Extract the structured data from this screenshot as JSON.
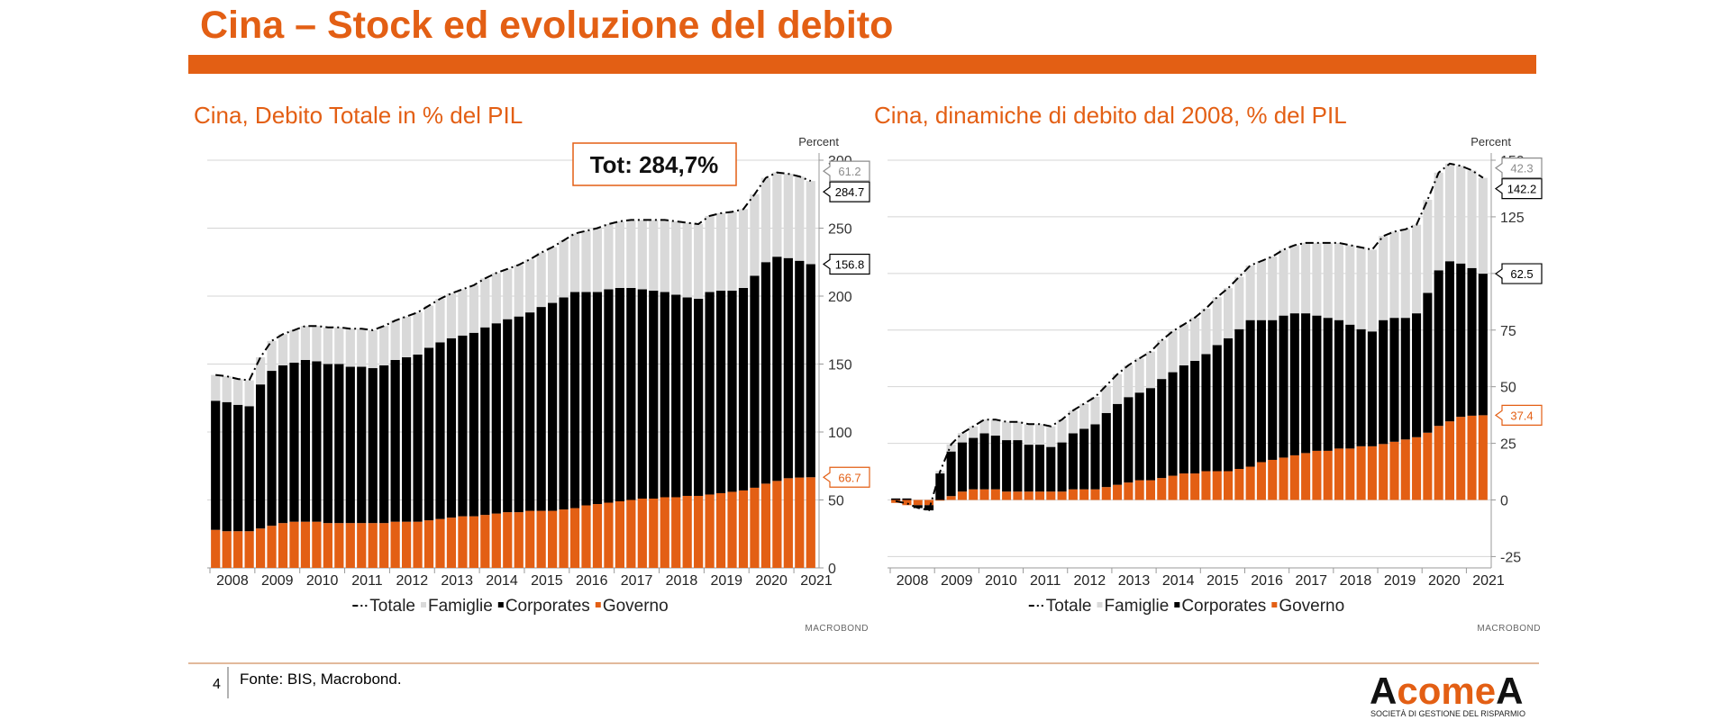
{
  "slide": {
    "title": "Cina – Stock ed evoluzione del debito",
    "page_number": "4",
    "source": "Fonte: BIS, Macrobond.",
    "logo": "AcomeA",
    "logo_tagline": "SOCIETÀ DI GESTIONE DEL RISPARMIO"
  },
  "chart_data": [
    {
      "type": "bar",
      "stacked": true,
      "title": "Cina, Debito Totale in % del PIL",
      "y_label": "Percent",
      "annotation": "Tot: 284,7%",
      "credit": "MACROBOND",
      "grid": true,
      "categories": [
        "2008",
        null,
        null,
        null,
        "2009",
        null,
        null,
        null,
        "2010",
        null,
        null,
        null,
        "2011",
        null,
        null,
        null,
        "2012",
        null,
        null,
        null,
        "2013",
        null,
        null,
        null,
        "2014",
        null,
        null,
        null,
        "2015",
        null,
        null,
        null,
        "2016",
        null,
        null,
        null,
        "2017",
        null,
        null,
        null,
        "2018",
        null,
        null,
        null,
        "2019",
        null,
        null,
        null,
        "2020",
        null,
        null,
        null,
        "2021",
        null
      ],
      "ylim": [
        0,
        300
      ],
      "yticks": [
        0,
        50,
        100,
        150,
        200,
        250,
        300
      ],
      "series": [
        {
          "name": "Totale",
          "type": "line",
          "color": "#000000",
          "values": [
            142,
            141,
            139,
            138,
            155,
            167,
            172,
            175,
            178,
            178,
            177,
            177,
            176,
            176,
            175,
            178,
            182,
            185,
            188,
            193,
            198,
            202,
            205,
            208,
            213,
            217,
            220,
            223,
            227,
            232,
            236,
            241,
            246,
            248,
            250,
            253,
            255,
            256,
            256,
            256,
            256,
            255,
            254,
            253,
            259,
            261,
            262,
            264,
            275,
            287,
            291,
            290,
            288,
            284.7
          ]
        },
        {
          "name": "Famiglie",
          "color": "#d9d9d9",
          "values": [
            19,
            19,
            19,
            19,
            20,
            22,
            23,
            24,
            25,
            26,
            27,
            27,
            28,
            28,
            28,
            29,
            29,
            30,
            31,
            31,
            32,
            33,
            34,
            35,
            36,
            37,
            37,
            38,
            39,
            40,
            41,
            42,
            43,
            45,
            47,
            48,
            49,
            50,
            51,
            52,
            53,
            54,
            55,
            55,
            56,
            57,
            58,
            58,
            60,
            62,
            62,
            62,
            62,
            61.2
          ]
        },
        {
          "name": "Corporates",
          "color": "#000000",
          "values": [
            95,
            95,
            93,
            92,
            106,
            114,
            116,
            117,
            119,
            118,
            117,
            117,
            115,
            115,
            114,
            116,
            119,
            121,
            123,
            127,
            130,
            132,
            133,
            135,
            138,
            140,
            142,
            144,
            146,
            150,
            153,
            156,
            159,
            157,
            156,
            157,
            157,
            156,
            154,
            153,
            151,
            149,
            146,
            145,
            149,
            149,
            148,
            149,
            156,
            163,
            165,
            162,
            159.5,
            156.8
          ]
        },
        {
          "name": "Governo",
          "color": "#e35f14",
          "values": [
            28,
            27,
            27,
            27,
            29,
            31,
            33,
            34,
            34,
            34,
            33,
            33,
            33,
            33,
            33,
            33,
            34,
            34,
            34,
            35,
            36,
            37,
            38,
            38,
            39,
            40,
            41,
            41,
            42,
            42,
            42,
            43,
            44,
            46,
            47,
            48,
            49,
            50,
            51,
            51,
            52,
            52,
            53,
            53,
            54,
            55,
            56,
            57,
            59,
            62,
            64,
            66,
            66.5,
            66.7
          ]
        }
      ]
    },
    {
      "type": "bar",
      "stacked": true,
      "title": "Cina, dinamiche di debito dal 2008, % del PIL",
      "y_label": "Percent",
      "credit": "MACROBOND",
      "grid": true,
      "categories": [
        "2008",
        null,
        null,
        null,
        "2009",
        null,
        null,
        null,
        "2010",
        null,
        null,
        null,
        "2011",
        null,
        null,
        null,
        "2012",
        null,
        null,
        null,
        "2013",
        null,
        null,
        null,
        "2014",
        null,
        null,
        null,
        "2015",
        null,
        null,
        null,
        "2016",
        null,
        null,
        null,
        "2017",
        null,
        null,
        null,
        "2018",
        null,
        null,
        null,
        "2019",
        null,
        null,
        null,
        "2020",
        null,
        null,
        null,
        "2021",
        null
      ],
      "ylim": [
        -30,
        150
      ],
      "yticks": [
        -25,
        0,
        25,
        50,
        75,
        100,
        125,
        150
      ],
      "series": [
        {
          "name": "Totale",
          "type": "line",
          "color": "#000000",
          "values": [
            -0.5,
            -1.5,
            -3.5,
            -4.5,
            12.5,
            24.5,
            29.5,
            32.5,
            35.5,
            35.5,
            34.5,
            34.5,
            33.5,
            33.5,
            32.5,
            35.5,
            39.5,
            42.5,
            45.5,
            50.5,
            55.5,
            59.5,
            62.5,
            65.5,
            70.5,
            74.5,
            77.5,
            80.5,
            84.5,
            89.5,
            93.5,
            98.5,
            103.5,
            105.5,
            107.5,
            110.5,
            112.5,
            113.5,
            113.5,
            113.5,
            113.5,
            112.5,
            111.5,
            110.5,
            116.5,
            118.5,
            119.5,
            121.5,
            132.5,
            144.5,
            148.5,
            147.5,
            145.5,
            142.2
          ]
        },
        {
          "name": "Famiglie",
          "color": "#d9d9d9",
          "values": [
            0.1,
            0.1,
            0.1,
            0.1,
            1.1,
            3.1,
            4.1,
            5.1,
            6.1,
            7.1,
            8.1,
            8.1,
            9.1,
            9.1,
            9.1,
            10.1,
            10.1,
            11.1,
            12.1,
            12.1,
            13.1,
            14.1,
            15.1,
            16.1,
            17.1,
            18.1,
            18.1,
            19.1,
            20.1,
            21.1,
            22.1,
            23.1,
            24.1,
            26.1,
            28.1,
            29.1,
            30.1,
            31.1,
            32.1,
            33.1,
            34.1,
            35.1,
            36.1,
            36.1,
            37.1,
            38.1,
            39.1,
            39.1,
            41.1,
            43.1,
            43.1,
            43.1,
            43.1,
            42.3
          ]
        },
        {
          "name": "Corporates",
          "color": "#000000",
          "values": [
            0.7,
            0.7,
            -1.3,
            -2.3,
            11.7,
            19.7,
            21.7,
            22.7,
            24.7,
            23.7,
            22.7,
            22.7,
            20.7,
            20.7,
            19.7,
            21.7,
            24.7,
            26.7,
            28.7,
            32.7,
            35.7,
            37.7,
            38.7,
            40.7,
            43.7,
            45.7,
            47.7,
            49.7,
            51.7,
            55.7,
            58.7,
            61.7,
            64.7,
            62.7,
            61.7,
            62.7,
            62.7,
            61.7,
            59.7,
            58.7,
            56.7,
            54.7,
            51.7,
            50.7,
            54.7,
            54.7,
            53.7,
            54.7,
            61.7,
            68.7,
            70.7,
            67.7,
            65.2,
            62.5
          ]
        },
        {
          "name": "Governo",
          "color": "#e35f14",
          "values": [
            -1.3,
            -2.3,
            -2.3,
            -2.3,
            -0.3,
            1.7,
            3.7,
            4.7,
            4.7,
            4.7,
            3.7,
            3.7,
            3.7,
            3.7,
            3.7,
            3.7,
            4.7,
            4.7,
            4.7,
            5.7,
            6.7,
            7.7,
            8.7,
            8.7,
            9.7,
            10.7,
            11.7,
            11.7,
            12.7,
            12.7,
            12.7,
            13.7,
            14.7,
            16.7,
            17.7,
            18.7,
            19.7,
            20.7,
            21.7,
            21.7,
            22.7,
            22.7,
            23.7,
            23.7,
            24.7,
            25.7,
            26.7,
            27.7,
            29.7,
            32.7,
            34.7,
            36.7,
            37.2,
            37.4
          ]
        }
      ]
    }
  ]
}
